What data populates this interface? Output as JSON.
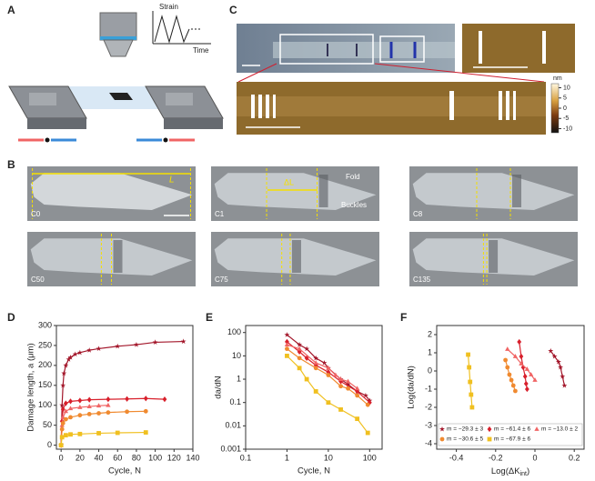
{
  "panel_labels": [
    "A",
    "B",
    "C",
    "D",
    "E",
    "F"
  ],
  "panel_a": {
    "strain_label": "Strain",
    "time_label": "Time"
  },
  "panel_b": {
    "frames": [
      "C0",
      "C1",
      "C8",
      "C50",
      "C75",
      "C135"
    ],
    "length_label": "L",
    "delta_label": "ΔL",
    "fold_label": "Fold",
    "buckles_label": "Buckles"
  },
  "panel_c": {
    "colorbar_unit": "nm",
    "colorbar_ticks": [
      10,
      5,
      0,
      -5,
      -10
    ],
    "colorbar_lim": [
      -12,
      12
    ]
  },
  "chart_data": [
    {
      "type": "scatter",
      "xlabel": "Cycle, N",
      "ylabel": "Damage length, a (μm)",
      "xlim": [
        -5,
        140
      ],
      "ylim": [
        -10,
        300
      ],
      "xticks": [
        0,
        20,
        40,
        60,
        80,
        100,
        120,
        140
      ],
      "yticks": [
        0,
        50,
        100,
        150,
        200,
        250,
        300
      ],
      "series": [
        {
          "color": "#a3162a",
          "marker": "star",
          "x": [
            0,
            1,
            2,
            3,
            5,
            8,
            10,
            15,
            20,
            30,
            40,
            60,
            80,
            100,
            130
          ],
          "values": [
            0,
            100,
            150,
            180,
            200,
            215,
            220,
            228,
            232,
            238,
            242,
            248,
            252,
            258,
            260
          ]
        },
        {
          "color": "#d8202c",
          "marker": "diamond",
          "x": [
            0,
            1,
            2,
            5,
            10,
            20,
            30,
            50,
            70,
            90,
            110
          ],
          "values": [
            0,
            60,
            90,
            105,
            110,
            112,
            114,
            115,
            116,
            117,
            115
          ]
        },
        {
          "color": "#f06464",
          "marker": "triangle",
          "x": [
            0,
            1,
            2,
            5,
            10,
            20,
            30,
            40,
            50
          ],
          "values": [
            0,
            50,
            70,
            85,
            92,
            95,
            97,
            99,
            100
          ]
        },
        {
          "color": "#f08a30",
          "marker": "circle",
          "x": [
            0,
            1,
            2,
            5,
            10,
            20,
            30,
            40,
            50,
            70,
            90
          ],
          "values": [
            0,
            40,
            55,
            65,
            70,
            75,
            78,
            80,
            82,
            84,
            85
          ]
        },
        {
          "color": "#f0c020",
          "marker": "square",
          "x": [
            0,
            1,
            5,
            10,
            20,
            40,
            60,
            90
          ],
          "values": [
            0,
            20,
            25,
            27,
            28,
            30,
            31,
            32
          ]
        }
      ]
    },
    {
      "type": "scatter",
      "xlabel": "Cycle, N",
      "ylabel": "da/dN",
      "xscale": "log",
      "yscale": "log",
      "xlim": [
        0.1,
        200
      ],
      "ylim": [
        0.001,
        200
      ],
      "xticks": [
        0.1,
        1,
        10,
        100
      ],
      "yticks": [
        0.001,
        0.01,
        0.1,
        1,
        10,
        100
      ],
      "series": [
        {
          "color": "#a3162a",
          "marker": "star",
          "x": [
            1,
            2,
            3,
            5,
            8,
            10,
            20,
            30,
            50,
            80,
            100
          ],
          "values": [
            80,
            30,
            20,
            8,
            5,
            3,
            1,
            0.6,
            0.3,
            0.2,
            0.12
          ]
        },
        {
          "color": "#d8202c",
          "marker": "diamond",
          "x": [
            1,
            2,
            3,
            5,
            10,
            20,
            50,
            100
          ],
          "values": [
            40,
            15,
            8,
            4,
            2,
            0.8,
            0.3,
            0.1
          ]
        },
        {
          "color": "#f06464",
          "marker": "triangle",
          "x": [
            1,
            2,
            5,
            10,
            15,
            20,
            30,
            50
          ],
          "values": [
            30,
            20,
            5,
            3,
            1.5,
            1,
            0.8,
            0.4
          ]
        },
        {
          "color": "#f08a30",
          "marker": "circle",
          "x": [
            1,
            2,
            5,
            10,
            20,
            30,
            50,
            90
          ],
          "values": [
            20,
            8,
            3,
            1.5,
            0.5,
            0.4,
            0.2,
            0.08
          ]
        },
        {
          "color": "#f0c020",
          "marker": "square",
          "x": [
            1,
            2,
            3,
            5,
            10,
            20,
            50,
            90
          ],
          "values": [
            10,
            3,
            1,
            0.3,
            0.1,
            0.05,
            0.02,
            0.005
          ]
        }
      ]
    },
    {
      "type": "scatter",
      "xlabel": [
        "Log(ΔK",
        "int",
        ")"
      ],
      "ylabel": "Log(da/dN)",
      "xlim": [
        -0.5,
        0.25
      ],
      "ylim": [
        -4.3,
        2.5
      ],
      "xticks": [
        -0.4,
        -0.2,
        0,
        0.2
      ],
      "yticks": [
        -4,
        -3,
        -2,
        -1,
        0,
        1,
        2
      ],
      "series": [
        {
          "name": "m = −29.3 ± 3",
          "color": "#a3162a",
          "marker": "star",
          "x": [
            0.08,
            0.1,
            0.12,
            0.13,
            0.14,
            0.15
          ],
          "values": [
            1.1,
            0.8,
            0.5,
            0.2,
            -0.3,
            -0.8
          ]
        },
        {
          "name": "m = −61.4 ± 6",
          "color": "#d8202c",
          "marker": "diamond",
          "x": [
            -0.08,
            -0.07,
            -0.06,
            -0.05,
            -0.045,
            -0.04
          ],
          "values": [
            1.6,
            0.8,
            0.2,
            -0.3,
            -0.7,
            -1
          ]
        },
        {
          "name": "m = −13.0 ± 2",
          "color": "#f06464",
          "marker": "triangle",
          "x": [
            -0.14,
            -0.1,
            -0.07,
            -0.04,
            -0.02,
            0
          ],
          "values": [
            1.2,
            0.8,
            0.4,
            0.1,
            -0.2,
            -0.5
          ]
        },
        {
          "name": "m = −30.6 ± 5",
          "color": "#f08a30",
          "marker": "circle",
          "x": [
            -0.15,
            -0.14,
            -0.13,
            -0.12,
            -0.11,
            -0.1
          ],
          "values": [
            0.6,
            0.2,
            -0.2,
            -0.5,
            -0.8,
            -1.1
          ]
        },
        {
          "name": "m = −67.9 ± 6",
          "color": "#f0c020",
          "marker": "square",
          "x": [
            -0.34,
            -0.335,
            -0.33,
            -0.325,
            -0.32
          ],
          "values": [
            0.9,
            0.2,
            -0.6,
            -1.3,
            -2
          ]
        }
      ]
    }
  ]
}
